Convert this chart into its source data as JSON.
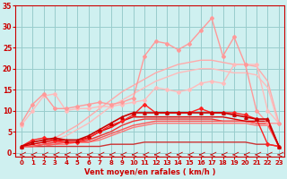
{
  "xlabel": "Vent moyen/en rafales ( km/h )",
  "bg_color": "#cff0f0",
  "grid_color": "#99cccc",
  "x": [
    0,
    1,
    2,
    3,
    4,
    5,
    6,
    7,
    8,
    9,
    10,
    11,
    12,
    13,
    14,
    15,
    16,
    17,
    18,
    19,
    20,
    21,
    22,
    23
  ],
  "ylim": [
    -1,
    35
  ],
  "xlim": [
    -0.5,
    23.5
  ],
  "yticks": [
    0,
    5,
    10,
    15,
    20,
    25,
    30,
    35
  ],
  "xticks": [
    0,
    1,
    2,
    3,
    4,
    5,
    6,
    7,
    8,
    9,
    10,
    11,
    12,
    13,
    14,
    15,
    16,
    17,
    18,
    19,
    20,
    21,
    22,
    23
  ],
  "lines": [
    {
      "y": [
        7,
        11.5,
        14,
        10.5,
        10.5,
        11,
        11.5,
        12,
        11.5,
        12,
        13,
        23,
        26.5,
        26,
        24.5,
        26,
        29,
        32,
        23,
        27.5,
        21,
        10,
        7,
        7
      ],
      "color": "#ff9999",
      "lw": 1.0,
      "marker": "D",
      "ms": 2.0,
      "zorder": 5
    },
    {
      "y": [
        1.5,
        2.0,
        2.5,
        3.5,
        5.0,
        6.5,
        8.5,
        10.5,
        12.5,
        14.5,
        16.0,
        17.5,
        19.0,
        20.0,
        21.0,
        21.5,
        22.0,
        22.0,
        21.5,
        21.0,
        21.0,
        20.5,
        17.0,
        7.0
      ],
      "color": "#ffaaaa",
      "lw": 1.0,
      "marker": null,
      "ms": 0,
      "zorder": 2
    },
    {
      "y": [
        1.5,
        2.0,
        2.0,
        3.0,
        4.0,
        5.5,
        7.0,
        9.0,
        11.0,
        12.5,
        14.0,
        15.5,
        17.0,
        18.0,
        19.0,
        19.5,
        20.0,
        20.0,
        19.5,
        19.0,
        19.0,
        18.5,
        15.5,
        6.5
      ],
      "color": "#ffbbbb",
      "lw": 1.0,
      "marker": null,
      "ms": 0,
      "zorder": 2
    },
    {
      "y": [
        6.5,
        10,
        13.5,
        14,
        10,
        10.5,
        10.5,
        11,
        11,
        11.5,
        12,
        12.5,
        15.5,
        15,
        14.5,
        15,
        16.5,
        17,
        16.5,
        21,
        21,
        21,
        10,
        7
      ],
      "color": "#ffbbbb",
      "lw": 1.0,
      "marker": "D",
      "ms": 2.0,
      "zorder": 4
    },
    {
      "y": [
        1.5,
        3.0,
        3.5,
        3.0,
        2.5,
        2.5,
        3.5,
        5.0,
        6.5,
        7.5,
        9.0,
        11.5,
        9.5,
        9.5,
        9.5,
        9.5,
        10.5,
        9.5,
        9.5,
        9.5,
        9.0,
        8.0,
        2.0,
        1.5
      ],
      "color": "#ff2222",
      "lw": 1.0,
      "marker": "D",
      "ms": 2.0,
      "zorder": 5
    },
    {
      "y": [
        1.5,
        2.5,
        3.0,
        3.5,
        3.0,
        3.0,
        4.0,
        5.5,
        7.0,
        8.5,
        9.5,
        9.5,
        9.5,
        9.5,
        9.5,
        9.5,
        9.5,
        9.5,
        9.5,
        9.0,
        8.5,
        8.0,
        8.0,
        1.5
      ],
      "color": "#cc0000",
      "lw": 1.2,
      "marker": "^",
      "ms": 2.5,
      "zorder": 5
    },
    {
      "y": [
        1.5,
        2.0,
        2.5,
        3.0,
        3.0,
        3.0,
        3.5,
        5.0,
        6.0,
        7.5,
        8.5,
        8.5,
        8.5,
        8.5,
        8.5,
        8.5,
        8.5,
        8.5,
        8.5,
        8.0,
        7.5,
        7.5,
        7.5,
        1.5
      ],
      "color": "#dd0000",
      "lw": 1.0,
      "marker": null,
      "ms": 0,
      "zorder": 4
    },
    {
      "y": [
        1.5,
        1.5,
        2.0,
        2.5,
        2.5,
        2.5,
        3.0,
        4.0,
        5.0,
        6.5,
        7.5,
        8.0,
        8.0,
        8.0,
        8.0,
        8.0,
        8.0,
        8.0,
        7.5,
        7.5,
        7.5,
        7.0,
        7.0,
        1.5
      ],
      "color": "#ee3333",
      "lw": 1.0,
      "marker": null,
      "ms": 0,
      "zorder": 3
    },
    {
      "y": [
        1.5,
        1.5,
        2.0,
        2.0,
        2.5,
        2.5,
        2.5,
        3.5,
        4.5,
        5.5,
        6.5,
        7.0,
        7.5,
        7.5,
        7.5,
        7.5,
        7.5,
        7.5,
        7.5,
        7.5,
        7.5,
        7.0,
        7.0,
        1.5
      ],
      "color": "#ff5555",
      "lw": 1.0,
      "marker": null,
      "ms": 0,
      "zorder": 3
    },
    {
      "y": [
        1.5,
        1.5,
        1.5,
        2.0,
        2.0,
        2.5,
        2.5,
        3.0,
        4.0,
        5.0,
        6.0,
        6.5,
        7.0,
        7.0,
        7.0,
        7.0,
        7.0,
        7.0,
        7.0,
        7.0,
        7.0,
        6.5,
        6.5,
        1.5
      ],
      "color": "#ff7777",
      "lw": 1.0,
      "marker": null,
      "ms": 0,
      "zorder": 2
    },
    {
      "y": [
        1.5,
        1.5,
        1.5,
        1.5,
        1.5,
        1.5,
        1.5,
        1.5,
        2.0,
        2.0,
        2.0,
        2.5,
        2.5,
        2.5,
        2.5,
        2.5,
        2.5,
        2.5,
        2.5,
        2.5,
        2.5,
        2.0,
        2.0,
        1.5
      ],
      "color": "#cc3333",
      "lw": 1.0,
      "marker": null,
      "ms": 0,
      "zorder": 2
    }
  ]
}
